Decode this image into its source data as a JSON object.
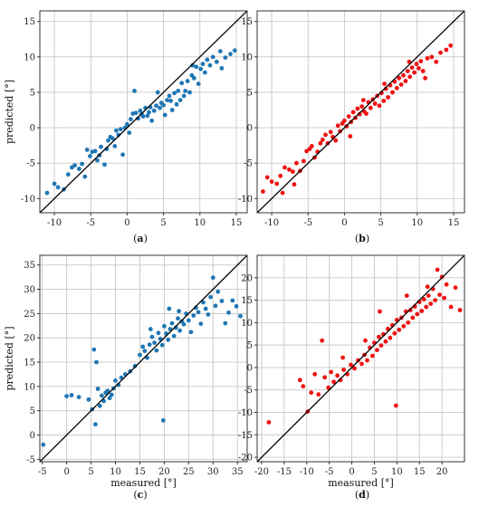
{
  "colors": {
    "blue": "#1f77b4",
    "red": "#ee1111",
    "identity": "#000000",
    "grid": "#c8c8c8",
    "frame": "#333333"
  },
  "chart_data": [
    {
      "type": "scatter",
      "panel_label": "(a)",
      "xlabel": "",
      "ylabel": "predicted [°]",
      "xlim": [
        -12,
        16.5
      ],
      "ylim": [
        -12,
        16.5
      ],
      "xticks": [
        -10,
        -5,
        0,
        5,
        10,
        15
      ],
      "yticks": [
        -10,
        -5,
        0,
        5,
        10,
        15
      ],
      "grid": true,
      "identity_line": true,
      "color": "#1f77b4",
      "points": [
        [
          -11,
          -9.2
        ],
        [
          -10,
          -7.9
        ],
        [
          -9.5,
          -8.4
        ],
        [
          -8.7,
          -8.7
        ],
        [
          -8.1,
          -6.6
        ],
        [
          -7.6,
          -5.6
        ],
        [
          -7.2,
          -5.3
        ],
        [
          -6.6,
          -5.8
        ],
        [
          -6.2,
          -5.1
        ],
        [
          -5.8,
          -6.9
        ],
        [
          -5.5,
          -3.1
        ],
        [
          -5.1,
          -4.0
        ],
        [
          -4.8,
          -3.4
        ],
        [
          -4.4,
          -3.3
        ],
        [
          -4.1,
          -4.6
        ],
        [
          -3.8,
          -3.9
        ],
        [
          -3.6,
          -2.7
        ],
        [
          -3.1,
          -5.2
        ],
        [
          -2.8,
          -3.0
        ],
        [
          -2.6,
          -1.8
        ],
        [
          -2.3,
          -1.3
        ],
        [
          -2.0,
          -1.5
        ],
        [
          -1.7,
          -2.6
        ],
        [
          -1.5,
          -0.4
        ],
        [
          -1.2,
          -1.0
        ],
        [
          -0.9,
          -0.2
        ],
        [
          -0.6,
          -3.8
        ],
        [
          -0.3,
          0.0
        ],
        [
          0.0,
          0.5
        ],
        [
          0.3,
          -0.7
        ],
        [
          0.5,
          1.2
        ],
        [
          0.8,
          2.0
        ],
        [
          1.0,
          5.2
        ],
        [
          1.2,
          2.1
        ],
        [
          1.5,
          1.3
        ],
        [
          1.8,
          2.4
        ],
        [
          2.0,
          1.9
        ],
        [
          2.2,
          1.6
        ],
        [
          2.5,
          2.8
        ],
        [
          2.8,
          1.7
        ],
        [
          3.0,
          2.2
        ],
        [
          3.2,
          2.9
        ],
        [
          3.4,
          1.0
        ],
        [
          3.7,
          2.4
        ],
        [
          4.0,
          3.1
        ],
        [
          4.2,
          5.0
        ],
        [
          4.5,
          2.8
        ],
        [
          4.7,
          3.5
        ],
        [
          5.0,
          3.2
        ],
        [
          5.2,
          1.8
        ],
        [
          5.5,
          3.9
        ],
        [
          5.8,
          4.5
        ],
        [
          6.0,
          3.8
        ],
        [
          6.2,
          2.5
        ],
        [
          6.5,
          4.9
        ],
        [
          6.8,
          3.3
        ],
        [
          7.0,
          5.2
        ],
        [
          7.3,
          3.9
        ],
        [
          7.5,
          6.3
        ],
        [
          7.8,
          4.5
        ],
        [
          8.0,
          5.2
        ],
        [
          8.3,
          6.6
        ],
        [
          8.6,
          5.0
        ],
        [
          8.9,
          7.4
        ],
        [
          9.2,
          7.0
        ],
        [
          9.5,
          8.6
        ],
        [
          9.8,
          6.2
        ],
        [
          10.1,
          8.3
        ],
        [
          10.4,
          9.0
        ],
        [
          10.7,
          7.8
        ],
        [
          11.0,
          9.6
        ],
        [
          11.4,
          8.8
        ],
        [
          11.8,
          10.0
        ],
        [
          12.3,
          9.3
        ],
        [
          12.8,
          10.8
        ],
        [
          13.5,
          9.9
        ],
        [
          14.2,
          10.4
        ],
        [
          14.8,
          10.9
        ],
        [
          13.0,
          8.4
        ],
        [
          9.0,
          8.8
        ]
      ]
    },
    {
      "type": "scatter",
      "panel_label": "(b)",
      "xlabel": "",
      "ylabel": "",
      "xlim": [
        -12,
        16.5
      ],
      "ylim": [
        -12,
        16.5
      ],
      "xticks": [
        -10,
        -5,
        0,
        5,
        10,
        15
      ],
      "yticks": [
        -10,
        -5,
        0,
        5,
        10,
        15
      ],
      "grid": true,
      "identity_line": true,
      "color": "#ee1111",
      "points": [
        [
          -11.2,
          -9.0
        ],
        [
          -10.6,
          -7.0
        ],
        [
          -10.0,
          -7.6
        ],
        [
          -9.3,
          -7.9
        ],
        [
          -8.8,
          -6.8
        ],
        [
          -8.2,
          -5.6
        ],
        [
          -7.6,
          -5.9
        ],
        [
          -7.1,
          -6.2
        ],
        [
          -6.6,
          -5.0
        ],
        [
          -6.1,
          -6.1
        ],
        [
          -5.6,
          -4.7
        ],
        [
          -5.2,
          -3.3
        ],
        [
          -4.8,
          -3.0
        ],
        [
          -4.5,
          -2.6
        ],
        [
          -4.1,
          -4.2
        ],
        [
          -3.7,
          -3.4
        ],
        [
          -3.3,
          -2.2
        ],
        [
          -3.0,
          -1.7
        ],
        [
          -2.6,
          -1.0
        ],
        [
          -2.3,
          -2.2
        ],
        [
          -1.9,
          -0.6
        ],
        [
          -1.6,
          -1.3
        ],
        [
          -1.2,
          -1.8
        ],
        [
          -0.9,
          0.3
        ],
        [
          -0.6,
          -0.5
        ],
        [
          -0.3,
          0.6
        ],
        [
          0.0,
          1.0
        ],
        [
          0.3,
          0.2
        ],
        [
          0.6,
          1.6
        ],
        [
          0.9,
          0.8
        ],
        [
          1.2,
          2.2
        ],
        [
          1.5,
          1.4
        ],
        [
          1.8,
          2.7
        ],
        [
          2.1,
          1.9
        ],
        [
          2.4,
          3.0
        ],
        [
          2.7,
          2.3
        ],
        [
          3.0,
          2.0
        ],
        [
          3.3,
          3.6
        ],
        [
          3.6,
          2.8
        ],
        [
          3.9,
          4.0
        ],
        [
          4.2,
          3.4
        ],
        [
          4.5,
          4.5
        ],
        [
          4.8,
          3.1
        ],
        [
          5.1,
          4.9
        ],
        [
          5.4,
          3.8
        ],
        [
          5.7,
          5.5
        ],
        [
          6.0,
          4.3
        ],
        [
          6.3,
          6.0
        ],
        [
          6.6,
          5.0
        ],
        [
          6.9,
          6.5
        ],
        [
          7.2,
          5.6
        ],
        [
          7.5,
          7.0
        ],
        [
          7.8,
          6.1
        ],
        [
          8.1,
          7.4
        ],
        [
          8.4,
          6.6
        ],
        [
          8.7,
          8.0
        ],
        [
          9.0,
          7.2
        ],
        [
          9.3,
          8.5
        ],
        [
          9.6,
          7.8
        ],
        [
          9.9,
          9.0
        ],
        [
          10.2,
          8.4
        ],
        [
          10.5,
          9.4
        ],
        [
          10.8,
          8.0
        ],
        [
          11.1,
          7.0
        ],
        [
          11.4,
          9.8
        ],
        [
          12.0,
          10.0
        ],
        [
          12.6,
          9.3
        ],
        [
          13.2,
          10.6
        ],
        [
          14.0,
          11.0
        ],
        [
          14.6,
          11.6
        ],
        [
          -8.5,
          -9.2
        ],
        [
          -6.9,
          -8.0
        ],
        [
          0.8,
          -1.2
        ],
        [
          2.6,
          3.9
        ],
        [
          5.5,
          6.2
        ],
        [
          8.9,
          9.3
        ]
      ]
    },
    {
      "type": "scatter",
      "panel_label": "(c)",
      "xlabel": "measured [°]",
      "ylabel": "predicted [°]",
      "xlim": [
        -5.5,
        37
      ],
      "ylim": [
        -5.5,
        37
      ],
      "xticks": [
        -5,
        0,
        5,
        10,
        15,
        20,
        25,
        30,
        35
      ],
      "yticks": [
        -5,
        0,
        5,
        10,
        15,
        20,
        25,
        30,
        35
      ],
      "grid": true,
      "identity_line": true,
      "color": "#1f77b4",
      "points": [
        [
          -4.8,
          -2.0
        ],
        [
          0.0,
          8.0
        ],
        [
          1.0,
          8.2
        ],
        [
          2.5,
          7.8
        ],
        [
          4.5,
          7.3
        ],
        [
          5.2,
          5.3
        ],
        [
          5.6,
          17.6
        ],
        [
          5.9,
          2.2
        ],
        [
          6.1,
          15.0
        ],
        [
          6.4,
          9.5
        ],
        [
          6.8,
          6.0
        ],
        [
          7.2,
          8.1
        ],
        [
          7.6,
          7.0
        ],
        [
          8.0,
          8.7
        ],
        [
          8.4,
          9.1
        ],
        [
          8.8,
          7.6
        ],
        [
          9.2,
          8.3
        ],
        [
          9.6,
          9.6
        ],
        [
          10.0,
          11.2
        ],
        [
          10.6,
          10.3
        ],
        [
          11.2,
          11.8
        ],
        [
          12.0,
          12.5
        ],
        [
          13.0,
          13.1
        ],
        [
          14.0,
          14.2
        ],
        [
          15.0,
          16.5
        ],
        [
          15.6,
          18.2
        ],
        [
          16.0,
          17.3
        ],
        [
          16.5,
          15.9
        ],
        [
          17.0,
          18.6
        ],
        [
          17.5,
          20.2
        ],
        [
          18.0,
          19.0
        ],
        [
          18.4,
          17.4
        ],
        [
          18.8,
          21.0
        ],
        [
          19.2,
          19.8
        ],
        [
          19.6,
          18.5
        ],
        [
          20.0,
          22.4
        ],
        [
          20.4,
          20.9
        ],
        [
          20.8,
          19.6
        ],
        [
          21.2,
          21.8
        ],
        [
          21.6,
          23.0
        ],
        [
          22.0,
          20.4
        ],
        [
          22.4,
          22.1
        ],
        [
          22.8,
          24.0
        ],
        [
          23.2,
          21.5
        ],
        [
          23.6,
          23.4
        ],
        [
          24.0,
          22.8
        ],
        [
          24.5,
          25.0
        ],
        [
          25.0,
          23.6
        ],
        [
          25.5,
          21.2
        ],
        [
          26.0,
          24.6
        ],
        [
          26.5,
          26.2
        ],
        [
          27.0,
          25.3
        ],
        [
          27.5,
          22.9
        ],
        [
          28.0,
          27.3
        ],
        [
          28.5,
          26.0
        ],
        [
          29.0,
          24.8
        ],
        [
          29.5,
          28.4
        ],
        [
          30.0,
          32.4
        ],
        [
          30.5,
          26.6
        ],
        [
          31.0,
          29.5
        ],
        [
          31.8,
          27.6
        ],
        [
          32.5,
          23.0
        ],
        [
          33.2,
          25.2
        ],
        [
          34.0,
          27.7
        ],
        [
          34.8,
          26.5
        ],
        [
          35.6,
          24.5
        ],
        [
          19.8,
          3.0
        ],
        [
          21.0,
          26.0
        ],
        [
          23.0,
          25.5
        ],
        [
          17.2,
          21.8
        ]
      ]
    },
    {
      "type": "scatter",
      "panel_label": "(d)",
      "xlabel": "measured [°]",
      "ylabel": "",
      "xlim": [
        -21,
        25
      ],
      "ylim": [
        -21,
        25
      ],
      "xticks": [
        -20,
        -15,
        -10,
        -5,
        0,
        5,
        10,
        15,
        20
      ],
      "yticks": [
        -20,
        -15,
        -10,
        -5,
        0,
        5,
        10,
        15,
        20
      ],
      "grid": true,
      "identity_line": true,
      "color": "#ee1111",
      "points": [
        [
          -18.4,
          -12.2
        ],
        [
          -11.5,
          -2.8
        ],
        [
          -10.8,
          -4.2
        ],
        [
          -9.8,
          -9.8
        ],
        [
          -9.0,
          -5.6
        ],
        [
          -8.2,
          -1.5
        ],
        [
          -7.4,
          -6.0
        ],
        [
          -6.6,
          6.0
        ],
        [
          -6.0,
          -2.2
        ],
        [
          -5.2,
          -4.5
        ],
        [
          -4.6,
          -1.0
        ],
        [
          -4.0,
          -3.2
        ],
        [
          -3.2,
          -1.8
        ],
        [
          -2.5,
          -2.8
        ],
        [
          -1.8,
          -0.5
        ],
        [
          -1.0,
          -1.5
        ],
        [
          -0.2,
          0.6
        ],
        [
          0.6,
          -0.2
        ],
        [
          1.4,
          1.6
        ],
        [
          2.2,
          0.8
        ],
        [
          2.8,
          2.8
        ],
        [
          3.4,
          1.6
        ],
        [
          4.0,
          4.4
        ],
        [
          4.6,
          2.6
        ],
        [
          5.0,
          5.5
        ],
        [
          5.6,
          3.9
        ],
        [
          6.0,
          6.8
        ],
        [
          6.5,
          4.9
        ],
        [
          7.0,
          7.4
        ],
        [
          7.5,
          5.8
        ],
        [
          8.0,
          8.6
        ],
        [
          8.5,
          6.6
        ],
        [
          9.0,
          9.4
        ],
        [
          9.5,
          7.6
        ],
        [
          10.0,
          10.6
        ],
        [
          10.5,
          8.4
        ],
        [
          11.0,
          11.1
        ],
        [
          11.5,
          9.2
        ],
        [
          12.0,
          12.5
        ],
        [
          12.5,
          10.0
        ],
        [
          13.0,
          12.8
        ],
        [
          13.5,
          11.1
        ],
        [
          14.0,
          13.6
        ],
        [
          14.5,
          11.9
        ],
        [
          15.0,
          14.6
        ],
        [
          15.5,
          12.6
        ],
        [
          16.0,
          15.2
        ],
        [
          16.5,
          13.5
        ],
        [
          17.0,
          16.0
        ],
        [
          17.5,
          14.2
        ],
        [
          18.0,
          17.5
        ],
        [
          18.5,
          15.0
        ],
        [
          19.0,
          21.8
        ],
        [
          19.5,
          16.2
        ],
        [
          20.0,
          20.2
        ],
        [
          20.5,
          15.5
        ],
        [
          21.0,
          18.5
        ],
        [
          22.0,
          13.5
        ],
        [
          23.0,
          17.8
        ],
        [
          24.0,
          12.8
        ],
        [
          9.8,
          -8.5
        ],
        [
          6.2,
          12.5
        ],
        [
          3.0,
          6.0
        ],
        [
          12.2,
          16.0
        ],
        [
          16.8,
          18.0
        ],
        [
          -2.0,
          2.2
        ]
      ]
    }
  ]
}
